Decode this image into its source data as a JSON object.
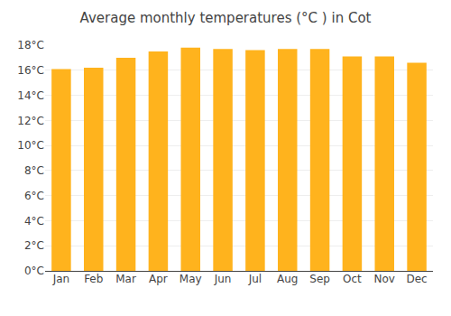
{
  "chart_data": {
    "type": "bar",
    "title": "Average monthly temperatures (°C ) in Cot",
    "categories": [
      "Jan",
      "Feb",
      "Mar",
      "Apr",
      "May",
      "Jun",
      "Jul",
      "Aug",
      "Sep",
      "Oct",
      "Nov",
      "Dec"
    ],
    "values": [
      16.1,
      16.2,
      17.0,
      17.5,
      17.8,
      17.7,
      17.6,
      17.7,
      17.7,
      17.1,
      17.1,
      16.6
    ],
    "color": "#ffb31d",
    "ylim": [
      0,
      18
    ],
    "yticks": [
      {
        "value": 0,
        "label": "0°C"
      },
      {
        "value": 2,
        "label": "2°C"
      },
      {
        "value": 4,
        "label": "4°C"
      },
      {
        "value": 6,
        "label": "6°C"
      },
      {
        "value": 8,
        "label": "8°C"
      },
      {
        "value": 10,
        "label": "10°C"
      },
      {
        "value": 12,
        "label": "12°C"
      },
      {
        "value": 14,
        "label": "14°C"
      },
      {
        "value": 16,
        "label": "16°C"
      },
      {
        "value": 18,
        "label": "18°C"
      }
    ],
    "grid": true
  }
}
